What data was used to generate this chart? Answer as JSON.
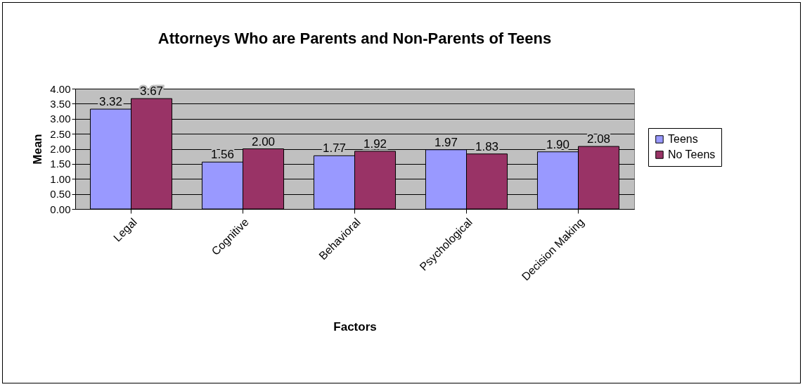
{
  "chart_data": {
    "type": "bar",
    "title": "Attorneys Who are Parents and Non-Parents of Teens",
    "xlabel": "Factors",
    "ylabel": "Mean",
    "categories": [
      "Legal",
      "Cognitive",
      "Behavioral",
      "Psychological",
      "Decision Making"
    ],
    "series": [
      {
        "name": "Teens",
        "color": "#9999ff",
        "values": [
          3.32,
          1.56,
          1.77,
          1.97,
          1.9
        ],
        "value_labels": [
          "3.32",
          "1.56",
          "1.77",
          "1.97",
          "1.90"
        ]
      },
      {
        "name": "No Teens",
        "color": "#993366",
        "values": [
          3.67,
          2.0,
          1.92,
          1.83,
          2.08
        ],
        "value_labels": [
          "3.67",
          "2.00",
          "1.92",
          "1.83",
          "2.08"
        ]
      }
    ],
    "ylim": [
      0,
      4
    ],
    "yticks": [
      {
        "value": 0,
        "label": "0.00"
      },
      {
        "value": 0.5,
        "label": "0.50"
      },
      {
        "value": 1,
        "label": "1.00"
      },
      {
        "value": 1.5,
        "label": "1.50"
      },
      {
        "value": 2,
        "label": "2.00"
      },
      {
        "value": 2.5,
        "label": "2.50"
      },
      {
        "value": 3,
        "label": "3.00"
      },
      {
        "value": 3.5,
        "label": "3.50"
      },
      {
        "value": 4,
        "label": "4.00"
      }
    ],
    "grid": "y",
    "legend": "right"
  }
}
